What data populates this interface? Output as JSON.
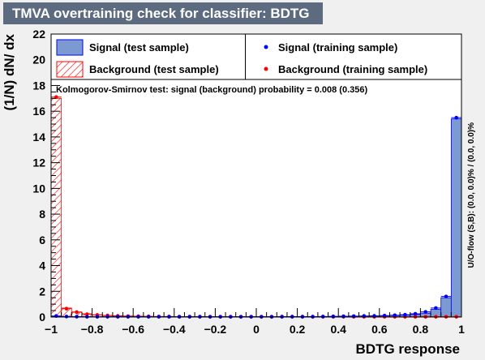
{
  "title": "TMVA overtraining check for classifier: BDTG",
  "colors": {
    "signal_fill": "#7d99d1",
    "signal_line": "#0000ee",
    "background_hatch": "#ff0000",
    "signal_marker": "#0000ff",
    "background_marker": "#ff0000",
    "title_bar": "#5c6b80",
    "frame_bg": "#ffffff"
  },
  "legend": {
    "signal_test": "Signal (test sample)",
    "background_test": "Background (test sample)",
    "signal_train": "Signal (training sample)",
    "background_train": "Background (training sample)"
  },
  "ks_text": "Kolmogorov-Smirnov test: signal (background) probability = 0.008 (0.356)",
  "side_text": "U/O-flow (S,B): (0.0, 0.0)% / (0.0, 0.0)%",
  "chart_data": {
    "type": "bar",
    "xlabel": "BDTG response",
    "ylabel": "(1/N) dN/ dx",
    "xlim": [
      -1,
      1
    ],
    "ylim": [
      0,
      22
    ],
    "x_ticks": [
      "−1",
      "−0.8",
      "−0.6",
      "−0.4",
      "−0.2",
      "0",
      "0.2",
      "0.4",
      "0.6",
      "0.8",
      "1"
    ],
    "y_ticks": [
      "0",
      "2",
      "4",
      "6",
      "8",
      "10",
      "12",
      "14",
      "16",
      "18",
      "20",
      "22"
    ],
    "bin_width": 0.05,
    "bin_low_edges": [
      -1.0,
      -0.95,
      -0.9,
      -0.85,
      -0.8,
      -0.75,
      -0.7,
      -0.65,
      -0.6,
      -0.55,
      -0.5,
      -0.45,
      -0.4,
      -0.35,
      -0.3,
      -0.25,
      -0.2,
      -0.15,
      -0.1,
      -0.05,
      0.0,
      0.05,
      0.1,
      0.15,
      0.2,
      0.25,
      0.3,
      0.35,
      0.4,
      0.45,
      0.5,
      0.55,
      0.6,
      0.65,
      0.7,
      0.75,
      0.8,
      0.85,
      0.9,
      0.95
    ],
    "series": [
      {
        "name": "Signal (test sample)",
        "style": "filled-histogram",
        "values": [
          0.05,
          0.03,
          0.02,
          0.02,
          0.02,
          0.02,
          0.02,
          0.02,
          0.02,
          0.02,
          0.02,
          0.02,
          0.02,
          0.02,
          0.02,
          0.02,
          0.02,
          0.02,
          0.02,
          0.02,
          0.02,
          0.02,
          0.02,
          0.03,
          0.03,
          0.03,
          0.03,
          0.04,
          0.05,
          0.06,
          0.07,
          0.08,
          0.1,
          0.12,
          0.15,
          0.2,
          0.3,
          0.6,
          1.5,
          15.4
        ]
      },
      {
        "name": "Background (test sample)",
        "style": "hatched-histogram",
        "values": [
          17.0,
          0.7,
          0.4,
          0.25,
          0.18,
          0.13,
          0.1,
          0.08,
          0.06,
          0.05,
          0.04,
          0.04,
          0.03,
          0.03,
          0.03,
          0.02,
          0.02,
          0.02,
          0.02,
          0.02,
          0.02,
          0.02,
          0.02,
          0.02,
          0.02,
          0.02,
          0.02,
          0.02,
          0.02,
          0.02,
          0.02,
          0.02,
          0.02,
          0.02,
          0.02,
          0.02,
          0.02,
          0.02,
          0.02,
          0.02
        ]
      },
      {
        "name": "Signal (training sample)",
        "style": "markers",
        "values": [
          0.08,
          0.04,
          0.03,
          0.02,
          0.02,
          0.02,
          0.02,
          0.02,
          0.02,
          0.02,
          0.02,
          0.02,
          0.02,
          0.02,
          0.02,
          0.02,
          0.02,
          0.02,
          0.02,
          0.02,
          0.02,
          0.02,
          0.03,
          0.03,
          0.03,
          0.03,
          0.04,
          0.05,
          0.06,
          0.07,
          0.08,
          0.09,
          0.11,
          0.14,
          0.18,
          0.25,
          0.4,
          0.7,
          1.6,
          15.5
        ]
      },
      {
        "name": "Background (training sample)",
        "style": "markers",
        "values": [
          17.1,
          0.65,
          0.38,
          0.22,
          0.16,
          0.12,
          0.09,
          0.07,
          0.06,
          0.05,
          0.04,
          0.04,
          0.03,
          0.03,
          0.03,
          0.02,
          0.02,
          0.02,
          0.02,
          0.02,
          0.02,
          0.02,
          0.02,
          0.02,
          0.02,
          0.02,
          0.02,
          0.02,
          0.02,
          0.02,
          0.02,
          0.02,
          0.02,
          0.02,
          0.02,
          0.02,
          0.02,
          0.02,
          0.02,
          0.02
        ]
      }
    ],
    "grid": false,
    "legend_position": "top"
  }
}
